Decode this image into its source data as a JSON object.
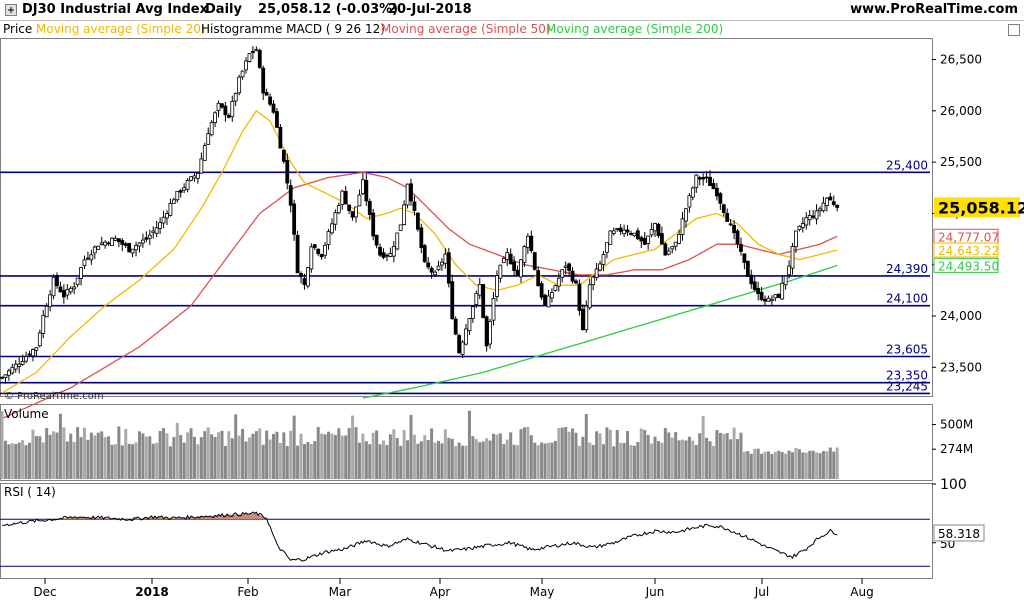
{
  "header": {
    "title": "DJ30 Industrial Avg Index",
    "period": "Daily",
    "price_change": "25,058.12 (-0.03%)",
    "date": "20-Jul-2018",
    "site": "www.ProRealTime.com"
  },
  "legend": {
    "price": "Price",
    "ma20": "Moving average (Simple 20)",
    "macd": "Histogramme MACD ( 9 26 12)",
    "ma50": "Moving average (Simple 50)",
    "ma200": "Moving average (Simple 200)"
  },
  "watermark": "© ProRealTime.com",
  "colors": {
    "ma20": "#f5b800",
    "ma50": "#d9534f",
    "ma200": "#2ecc40",
    "level": "#000080",
    "rsi_fill": "#c98a80",
    "volume": "#999999",
    "price_badge": "#ffe000"
  },
  "chart_data": [
    {
      "type": "candlestick",
      "title": "DJ30 Industrial Avg Index",
      "ylim": [
        23220,
        26700
      ],
      "yticks": [
        "26,500",
        "26,000",
        "25,500",
        "25,000",
        "24,500",
        "24,000",
        "23,500"
      ],
      "ytick_values": [
        26500,
        26000,
        25500,
        25000,
        24500,
        24000,
        23500
      ],
      "xticks": [
        "Dec",
        "2018",
        "Feb",
        "Mar",
        "Apr",
        "May",
        "Jun",
        "Jul",
        "Aug"
      ],
      "horizontal_levels": [
        {
          "label": "25,400",
          "value": 25400
        },
        {
          "label": "24,390",
          "value": 24390
        },
        {
          "label": "24,100",
          "value": 24100
        },
        {
          "label": "23,605",
          "value": 23605
        },
        {
          "label": "23,350",
          "value": 23350
        },
        {
          "label": "23,245",
          "value": 23245
        }
      ],
      "price_labels": [
        {
          "label": "25,058.12",
          "value": 25058.12,
          "series": "price"
        },
        {
          "label": "24,777.07",
          "value": 24777.07,
          "series": "ma50"
        },
        {
          "label": "24,643.22",
          "value": 24643.22,
          "series": "ma20"
        },
        {
          "label": "24,493.50",
          "value": 24493.5,
          "series": "ma200"
        }
      ],
      "series_keypoints": {
        "close": [
          [
            0,
            23400
          ],
          [
            5,
            23550
          ],
          [
            10,
            23700
          ],
          [
            12,
            24000
          ],
          [
            15,
            24350
          ],
          [
            18,
            24200
          ],
          [
            21,
            24300
          ],
          [
            24,
            24550
          ],
          [
            28,
            24700
          ],
          [
            33,
            24750
          ],
          [
            37,
            24650
          ],
          [
            42,
            24750
          ],
          [
            46,
            24900
          ],
          [
            50,
            25150
          ],
          [
            54,
            25300
          ],
          [
            57,
            25400
          ],
          [
            60,
            25800
          ],
          [
            63,
            26050
          ],
          [
            66,
            25950
          ],
          [
            69,
            26300
          ],
          [
            72,
            26550
          ],
          [
            74,
            26600
          ],
          [
            76,
            26200
          ],
          [
            79,
            26000
          ],
          [
            82,
            25500
          ],
          [
            84,
            25100
          ],
          [
            86,
            24450
          ],
          [
            88,
            24300
          ],
          [
            90,
            24700
          ],
          [
            93,
            24600
          ],
          [
            96,
            24900
          ],
          [
            99,
            25200
          ],
          [
            102,
            24950
          ],
          [
            105,
            25300
          ],
          [
            108,
            24800
          ],
          [
            110,
            24600
          ],
          [
            113,
            24600
          ],
          [
            116,
            24900
          ],
          [
            118,
            25300
          ],
          [
            120,
            25000
          ],
          [
            123,
            24500
          ],
          [
            126,
            24400
          ],
          [
            129,
            24600
          ],
          [
            131,
            24000
          ],
          [
            133,
            23650
          ],
          [
            136,
            24000
          ],
          [
            139,
            24300
          ],
          [
            141,
            23700
          ],
          [
            144,
            24400
          ],
          [
            147,
            24600
          ],
          [
            150,
            24400
          ],
          [
            153,
            24800
          ],
          [
            156,
            24300
          ],
          [
            158,
            24100
          ],
          [
            161,
            24300
          ],
          [
            164,
            24500
          ],
          [
            167,
            24300
          ],
          [
            169,
            23850
          ],
          [
            171,
            24300
          ],
          [
            174,
            24500
          ],
          [
            177,
            24800
          ],
          [
            181,
            24850
          ],
          [
            184,
            24800
          ],
          [
            187,
            24700
          ],
          [
            190,
            24900
          ],
          [
            193,
            24600
          ],
          [
            196,
            24700
          ],
          [
            199,
            25050
          ],
          [
            202,
            25350
          ],
          [
            205,
            25330
          ],
          [
            208,
            25200
          ],
          [
            211,
            24950
          ],
          [
            214,
            24700
          ],
          [
            217,
            24400
          ],
          [
            220,
            24200
          ],
          [
            223,
            24150
          ],
          [
            226,
            24200
          ],
          [
            229,
            24500
          ],
          [
            231,
            24800
          ],
          [
            234,
            24950
          ],
          [
            237,
            25000
          ],
          [
            240,
            25150
          ],
          [
            242,
            25100
          ],
          [
            243,
            25058
          ]
        ],
        "ma20": [
          [
            0,
            23250
          ],
          [
            10,
            23450
          ],
          [
            20,
            23800
          ],
          [
            30,
            24100
          ],
          [
            40,
            24350
          ],
          [
            50,
            24650
          ],
          [
            58,
            25050
          ],
          [
            64,
            25400
          ],
          [
            70,
            25800
          ],
          [
            74,
            26000
          ],
          [
            78,
            25900
          ],
          [
            84,
            25500
          ],
          [
            88,
            25300
          ],
          [
            94,
            25200
          ],
          [
            100,
            25100
          ],
          [
            106,
            24950
          ],
          [
            112,
            25000
          ],
          [
            116,
            25050
          ],
          [
            120,
            25000
          ],
          [
            126,
            24800
          ],
          [
            132,
            24500
          ],
          [
            138,
            24300
          ],
          [
            144,
            24250
          ],
          [
            150,
            24300
          ],
          [
            156,
            24400
          ],
          [
            162,
            24300
          ],
          [
            168,
            24300
          ],
          [
            172,
            24400
          ],
          [
            178,
            24550
          ],
          [
            184,
            24600
          ],
          [
            190,
            24650
          ],
          [
            196,
            24800
          ],
          [
            202,
            24950
          ],
          [
            208,
            25000
          ],
          [
            214,
            24900
          ],
          [
            220,
            24700
          ],
          [
            226,
            24600
          ],
          [
            232,
            24550
          ],
          [
            238,
            24600
          ],
          [
            243,
            24643
          ]
        ],
        "ma50": [
          [
            0,
            23000
          ],
          [
            20,
            23300
          ],
          [
            40,
            23700
          ],
          [
            55,
            24100
          ],
          [
            65,
            24550
          ],
          [
            75,
            25000
          ],
          [
            85,
            25250
          ],
          [
            95,
            25350
          ],
          [
            105,
            25400
          ],
          [
            112,
            25350
          ],
          [
            118,
            25250
          ],
          [
            124,
            25050
          ],
          [
            130,
            24850
          ],
          [
            136,
            24700
          ],
          [
            144,
            24600
          ],
          [
            152,
            24500
          ],
          [
            160,
            24450
          ],
          [
            168,
            24400
          ],
          [
            176,
            24400
          ],
          [
            184,
            24450
          ],
          [
            192,
            24450
          ],
          [
            200,
            24550
          ],
          [
            208,
            24700
          ],
          [
            214,
            24700
          ],
          [
            220,
            24650
          ],
          [
            226,
            24600
          ],
          [
            232,
            24650
          ],
          [
            238,
            24700
          ],
          [
            243,
            24777
          ]
        ],
        "ma200": [
          [
            105,
            23200
          ],
          [
            120,
            23300
          ],
          [
            140,
            23450
          ],
          [
            160,
            23650
          ],
          [
            180,
            23850
          ],
          [
            200,
            24050
          ],
          [
            215,
            24200
          ],
          [
            230,
            24350
          ],
          [
            243,
            24493
          ]
        ]
      },
      "x_domain": [
        0,
        270
      ]
    },
    {
      "type": "bar",
      "title": "Volume",
      "yticks": [
        "500M",
        "274M"
      ],
      "ytick_values": [
        500,
        274
      ],
      "ylim": [
        0,
        680
      ],
      "unit": "M"
    },
    {
      "type": "line",
      "title": "RSI ( 14)",
      "ylim": [
        20,
        100
      ],
      "yticks": [
        "100",
        "50"
      ],
      "ytick_values": [
        100,
        50
      ],
      "levels": [
        70,
        30
      ],
      "last_value_label": "58.318",
      "last_value": 58.318,
      "keypoints": [
        [
          0,
          65
        ],
        [
          8,
          68
        ],
        [
          15,
          70
        ],
        [
          22,
          72
        ],
        [
          30,
          71
        ],
        [
          38,
          70
        ],
        [
          44,
          72
        ],
        [
          50,
          71
        ],
        [
          56,
          72
        ],
        [
          62,
          73
        ],
        [
          68,
          74
        ],
        [
          74,
          75
        ],
        [
          77,
          71
        ],
        [
          80,
          48
        ],
        [
          84,
          35
        ],
        [
          88,
          36
        ],
        [
          94,
          42
        ],
        [
          100,
          45
        ],
        [
          106,
          52
        ],
        [
          112,
          47
        ],
        [
          118,
          53
        ],
        [
          124,
          48
        ],
        [
          130,
          43
        ],
        [
          136,
          45
        ],
        [
          142,
          48
        ],
        [
          148,
          50
        ],
        [
          154,
          44
        ],
        [
          160,
          47
        ],
        [
          166,
          50
        ],
        [
          172,
          46
        ],
        [
          178,
          50
        ],
        [
          184,
          56
        ],
        [
          190,
          60
        ],
        [
          196,
          59
        ],
        [
          202,
          63
        ],
        [
          206,
          65
        ],
        [
          210,
          63
        ],
        [
          214,
          58
        ],
        [
          218,
          53
        ],
        [
          222,
          47
        ],
        [
          226,
          42
        ],
        [
          230,
          38
        ],
        [
          234,
          45
        ],
        [
          238,
          55
        ],
        [
          241,
          60
        ],
        [
          243,
          58
        ]
      ]
    }
  ]
}
